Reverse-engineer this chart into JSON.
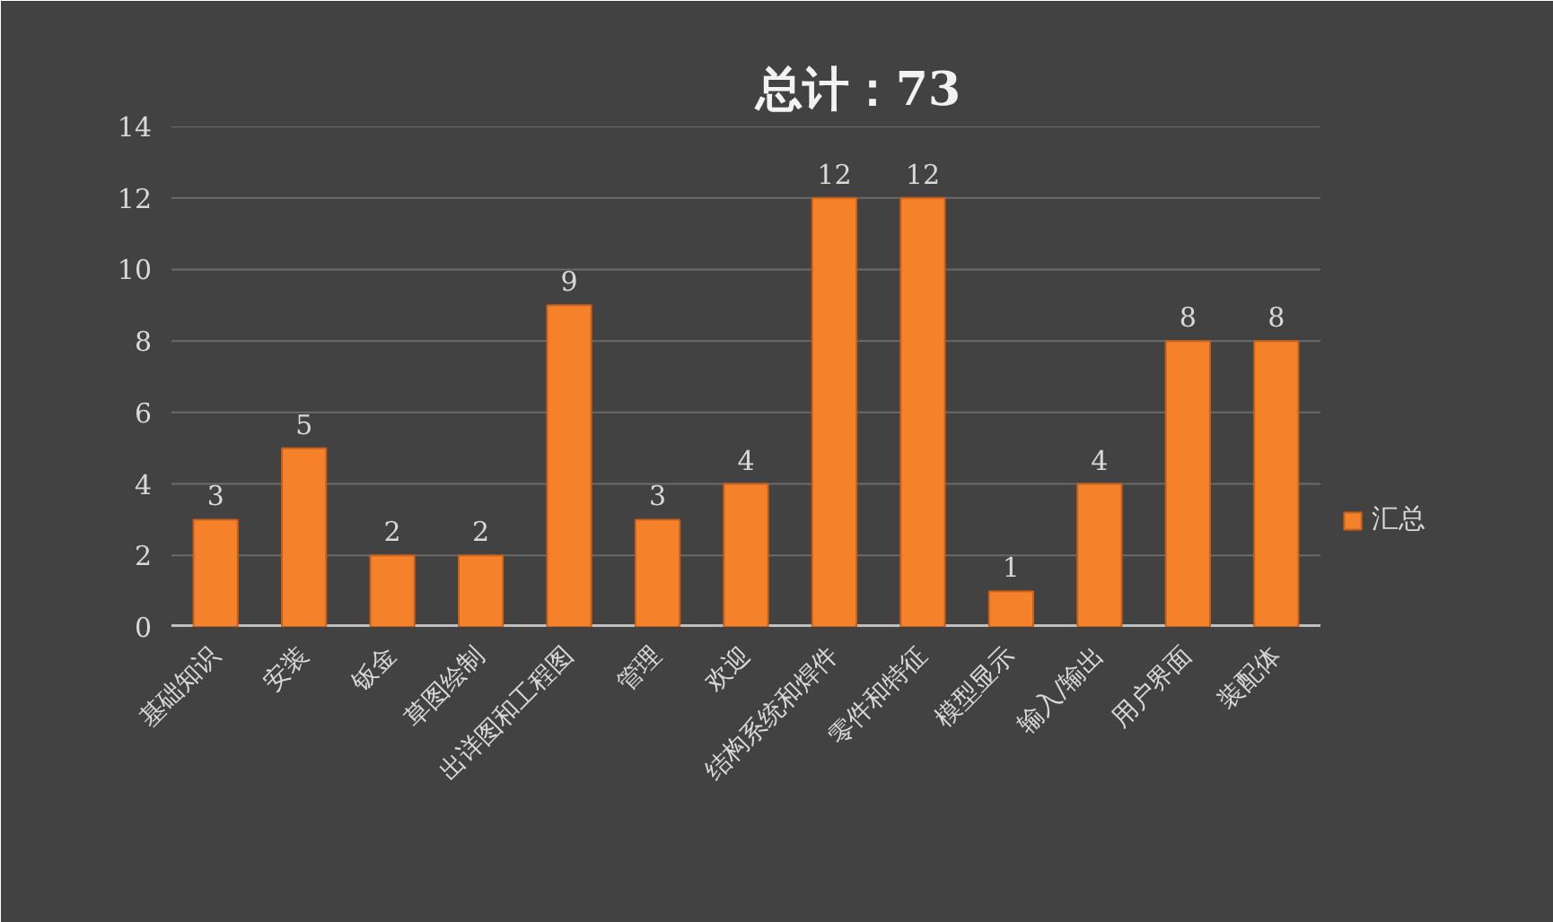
{
  "chart_data": {
    "type": "bar",
    "title": "总计：73",
    "categories": [
      "基础知识",
      "安装",
      "钣金",
      "草图绘制",
      "出详图和工程图",
      "管理",
      "欢迎",
      "结构系统和焊件",
      "零件和特征",
      "模型显示",
      "输入/输出",
      "用户界面",
      "装配体"
    ],
    "series": [
      {
        "name": "汇总",
        "color": "#f5822a",
        "values": [
          3,
          5,
          2,
          2,
          9,
          3,
          4,
          12,
          12,
          1,
          4,
          8,
          8
        ]
      }
    ],
    "ylim": [
      0,
      14
    ],
    "yticks": [
      0,
      2,
      4,
      6,
      8,
      10,
      12,
      14
    ],
    "grid": "y",
    "legend": "right",
    "data_labels": true
  }
}
